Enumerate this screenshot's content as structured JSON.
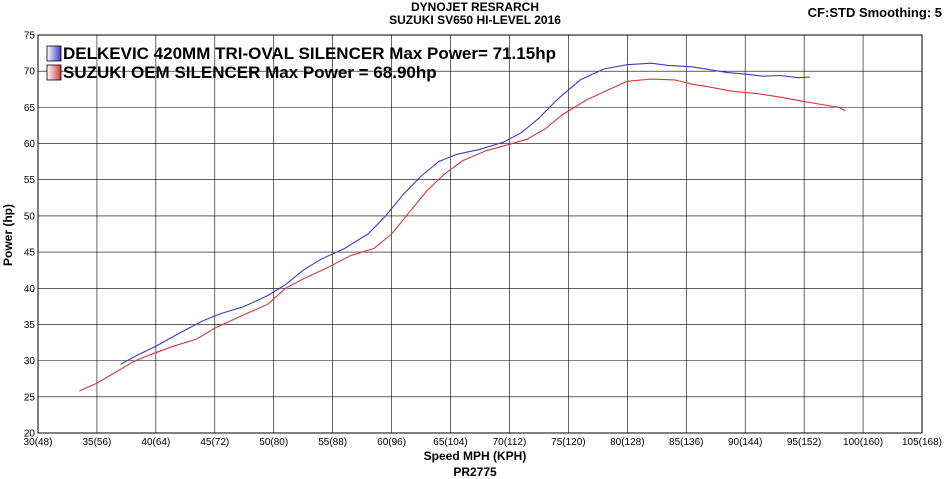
{
  "header": {
    "title": "DYNOJET RESRARCH",
    "subtitle": "SUZUKI SV650 HI-LEVEL 2016",
    "settings": "CF:STD Smoothing: 5",
    "footer": "PR2775"
  },
  "chart_data": {
    "type": "line",
    "title": "DYNOJET RESRARCH",
    "subtitle": "SUZUKI SV650 HI-LEVEL 2016",
    "xlabel": "Speed MPH (KPH)",
    "ylabel": "Power (hp)",
    "xlim": [
      30,
      105
    ],
    "ylim": [
      20,
      75
    ],
    "grid": true,
    "legend_position": "top-left",
    "x_ticks": [
      {
        "value": 30,
        "label": "30(48)"
      },
      {
        "value": 35,
        "label": "35(56)"
      },
      {
        "value": 40,
        "label": "40(64)"
      },
      {
        "value": 45,
        "label": "45(72)"
      },
      {
        "value": 50,
        "label": "50(80)"
      },
      {
        "value": 55,
        "label": "55(88)"
      },
      {
        "value": 60,
        "label": "60(96)"
      },
      {
        "value": 65,
        "label": "65(104)"
      },
      {
        "value": 70,
        "label": "70(112)"
      },
      {
        "value": 75,
        "label": "75(120)"
      },
      {
        "value": 80,
        "label": "80(128)"
      },
      {
        "value": 85,
        "label": "85(136)"
      },
      {
        "value": 90,
        "label": "90(144)"
      },
      {
        "value": 95,
        "label": "95(152)"
      },
      {
        "value": 100,
        "label": "100(160)"
      },
      {
        "value": 105,
        "label": "105(168)"
      }
    ],
    "y_ticks": [
      20,
      25,
      30,
      35,
      40,
      45,
      50,
      55,
      60,
      65,
      70,
      75
    ],
    "series": [
      {
        "name": "DELKEVIC 420MM TRI-OVAL SILENCER Max Power= 71.15hp",
        "color": "#3b3bc4",
        "x": [
          37.0,
          38.5,
          40.0,
          42.0,
          44.0,
          45.5,
          47.5,
          49.5,
          51.0,
          52.5,
          54.0,
          56.0,
          58.0,
          59.5,
          61.0,
          62.5,
          64.0,
          65.5,
          67.5,
          69.5,
          71.0,
          72.5,
          74.0,
          76.0,
          78.0,
          80.0,
          82.0,
          83.5,
          85.5,
          87.0,
          88.5,
          90.0,
          91.5,
          93.0,
          94.5,
          95.5
        ],
        "y": [
          29.5,
          30.8,
          32.0,
          33.8,
          35.5,
          36.5,
          37.5,
          39.0,
          40.5,
          42.5,
          44.0,
          45.5,
          47.5,
          50.0,
          53.0,
          55.5,
          57.5,
          58.5,
          59.2,
          60.2,
          61.5,
          63.5,
          66.0,
          68.8,
          70.3,
          70.9,
          71.1,
          70.8,
          70.6,
          70.2,
          69.8,
          69.6,
          69.3,
          69.4,
          69.1,
          69.2
        ]
      },
      {
        "name": "SUZUKI OEM SILENCER Max Power = 68.90hp",
        "color": "#d23a3a",
        "x": [
          33.5,
          35.0,
          36.5,
          38.0,
          39.5,
          41.5,
          43.5,
          45.0,
          47.0,
          49.5,
          51.0,
          52.5,
          54.5,
          56.5,
          58.5,
          60.0,
          61.5,
          63.0,
          64.5,
          66.0,
          68.0,
          70.0,
          71.5,
          73.0,
          74.5,
          76.5,
          78.5,
          80.0,
          82.0,
          84.0,
          85.5,
          87.0,
          89.0,
          91.0,
          93.0,
          95.0,
          96.5,
          98.0,
          98.5
        ],
        "y": [
          25.8,
          26.9,
          28.3,
          29.8,
          30.8,
          32.0,
          33.0,
          34.5,
          36.0,
          37.8,
          40.0,
          41.3,
          42.8,
          44.5,
          45.5,
          47.5,
          50.5,
          53.5,
          55.8,
          57.6,
          59.0,
          59.9,
          60.6,
          62.0,
          64.0,
          66.0,
          67.5,
          68.6,
          68.9,
          68.8,
          68.2,
          67.8,
          67.2,
          66.9,
          66.4,
          65.8,
          65.4,
          65.0,
          64.5
        ]
      }
    ]
  }
}
